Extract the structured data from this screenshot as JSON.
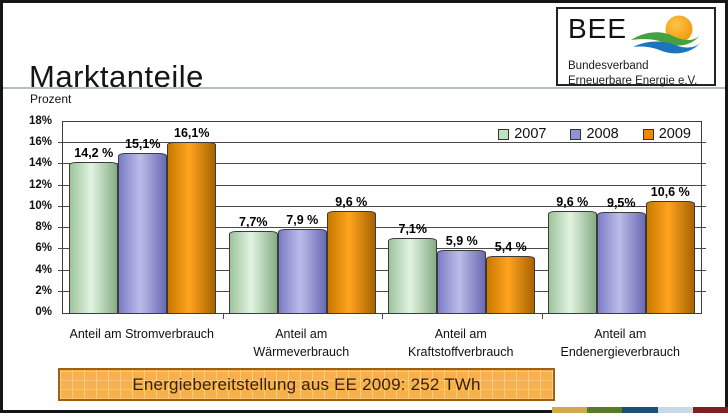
{
  "slide": {
    "title": "Marktanteile",
    "unit_label": "Prozent"
  },
  "logo": {
    "acronym": "BEE",
    "org_line1": "Bundesverband",
    "org_line2": "Erneuerbare Energie e.V.",
    "sun_color": "#f09c08",
    "wave_green": "#44a13d",
    "wave_blue": "#1c75bc"
  },
  "chart_data": {
    "type": "bar",
    "title": "Marktanteile",
    "ylabel": "Prozent",
    "ylim": [
      0,
      18
    ],
    "ytick_step": 2,
    "ytick_suffix": "%",
    "grid": true,
    "legend_position": "top-right inside plot area",
    "categories": [
      "Anteil am Stromverbrauch",
      "Anteil am Wärmeverbrauch",
      "Anteil am Kraftstoffverbrauch",
      "Anteil am Endenergieverbrauch"
    ],
    "category_label_lines": [
      [
        "Anteil am Stromverbrauch"
      ],
      [
        "Anteil am",
        "Wärmeverbrauch"
      ],
      [
        "Anteil am",
        "Kraftstoffverbrauch"
      ],
      [
        "Anteil am",
        "Endenergieverbrauch"
      ]
    ],
    "series": [
      {
        "name": "2007",
        "legend_color": "#bfe3bf",
        "gradient": [
          "#9cc49c",
          "#e2f3e2",
          "#86ac86"
        ],
        "values": [
          14.2,
          7.7,
          7.1,
          9.6
        ],
        "labels": [
          "14,2 %",
          "7,7%",
          "7,1%",
          "9,6 %"
        ]
      },
      {
        "name": "2008",
        "legend_color": "#9191d5",
        "gradient": [
          "#7c7cc6",
          "#bcbcea",
          "#6a6ab2"
        ],
        "values": [
          15.1,
          7.9,
          5.9,
          9.5
        ],
        "labels": [
          "15,1%",
          "7,9 %",
          "5,9 %",
          "9,5%"
        ]
      },
      {
        "name": "2009",
        "legend_color": "#ef8a00",
        "gradient": [
          "#c87800",
          "#ffa41e",
          "#a86200"
        ],
        "values": [
          16.1,
          9.6,
          5.4,
          10.6
        ],
        "labels": [
          "16,1%",
          "9,6 %",
          "5,4 %",
          "10,6 %"
        ]
      }
    ]
  },
  "banner": {
    "text": "Energiebereitstellung aus EE 2009: 252 TWh",
    "fill": "#f6b14c",
    "border": "#9c6018",
    "text_color": "#3a1f08"
  },
  "footer_strip": {
    "colors": [
      "#cfa94e",
      "#5c7a2e",
      "#1f4e79",
      "#c6d9e4",
      "#7f1f1f"
    ]
  }
}
